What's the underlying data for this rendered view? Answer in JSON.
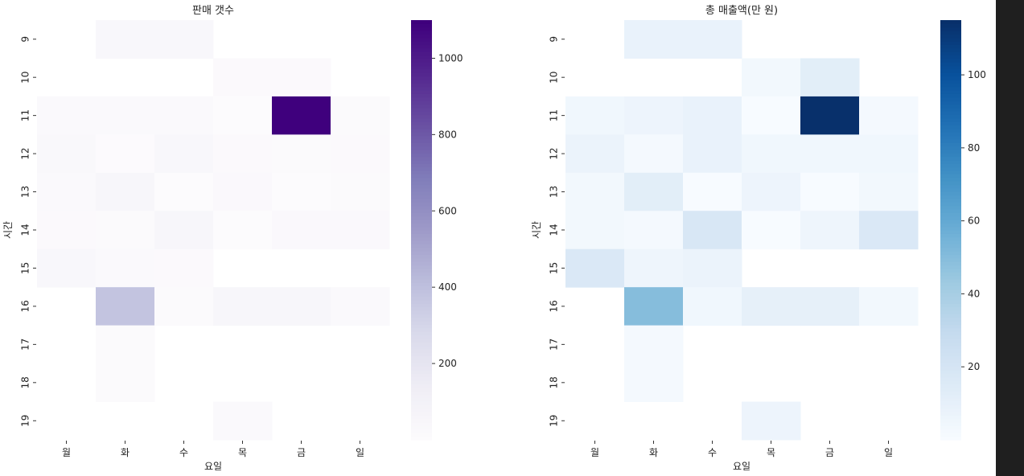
{
  "chart_data": [
    {
      "type": "heatmap",
      "title": "판매 갯수",
      "xlabel": "요일",
      "ylabel": "시간",
      "x_categories": [
        "월",
        "화",
        "수",
        "목",
        "금",
        "일"
      ],
      "y_categories": [
        "9",
        "10",
        "11",
        "12",
        "13",
        "14",
        "15",
        "16",
        "17",
        "18",
        "19"
      ],
      "colormap": "Purples",
      "value_range": [
        0,
        1100
      ],
      "colorbar_ticks": [
        200,
        400,
        600,
        800,
        1000
      ],
      "values": [
        [
          null,
          40,
          40,
          null,
          null,
          null
        ],
        [
          null,
          null,
          null,
          15,
          15,
          null
        ],
        [
          20,
          20,
          20,
          0,
          1100,
          10
        ],
        [
          30,
          5,
          40,
          15,
          10,
          15
        ],
        [
          20,
          50,
          0,
          25,
          0,
          10
        ],
        [
          15,
          10,
          50,
          0,
          25,
          25
        ],
        [
          40,
          20,
          15,
          null,
          null,
          null
        ],
        [
          null,
          380,
          10,
          50,
          50,
          20
        ],
        [
          null,
          10,
          null,
          null,
          null,
          null
        ],
        [
          null,
          10,
          null,
          null,
          null,
          null
        ],
        [
          null,
          null,
          null,
          20,
          null,
          null
        ]
      ]
    },
    {
      "type": "heatmap",
      "title": "총 매출액(만 원)",
      "xlabel": "요일",
      "ylabel": "시간",
      "x_categories": [
        "월",
        "화",
        "수",
        "목",
        "금",
        "일"
      ],
      "y_categories": [
        "9",
        "10",
        "11",
        "12",
        "13",
        "14",
        "15",
        "16",
        "17",
        "18",
        "19"
      ],
      "colormap": "Blues",
      "value_range": [
        0,
        115
      ],
      "colorbar_ticks": [
        20,
        40,
        60,
        80,
        100
      ],
      "values": [
        [
          null,
          8,
          8,
          null,
          null,
          null
        ],
        [
          null,
          null,
          null,
          3,
          12,
          null
        ],
        [
          4,
          6,
          8,
          0,
          115,
          2
        ],
        [
          7,
          2,
          8,
          4,
          4,
          4
        ],
        [
          3,
          12,
          0,
          6,
          0,
          3
        ],
        [
          3,
          2,
          18,
          0,
          5,
          17
        ],
        [
          17,
          5,
          7,
          null,
          null,
          null
        ],
        [
          null,
          50,
          4,
          10,
          10,
          3
        ],
        [
          null,
          2,
          null,
          null,
          null,
          null
        ],
        [
          null,
          2,
          null,
          null,
          null,
          null
        ],
        [
          null,
          null,
          null,
          6,
          null,
          null
        ]
      ]
    }
  ]
}
